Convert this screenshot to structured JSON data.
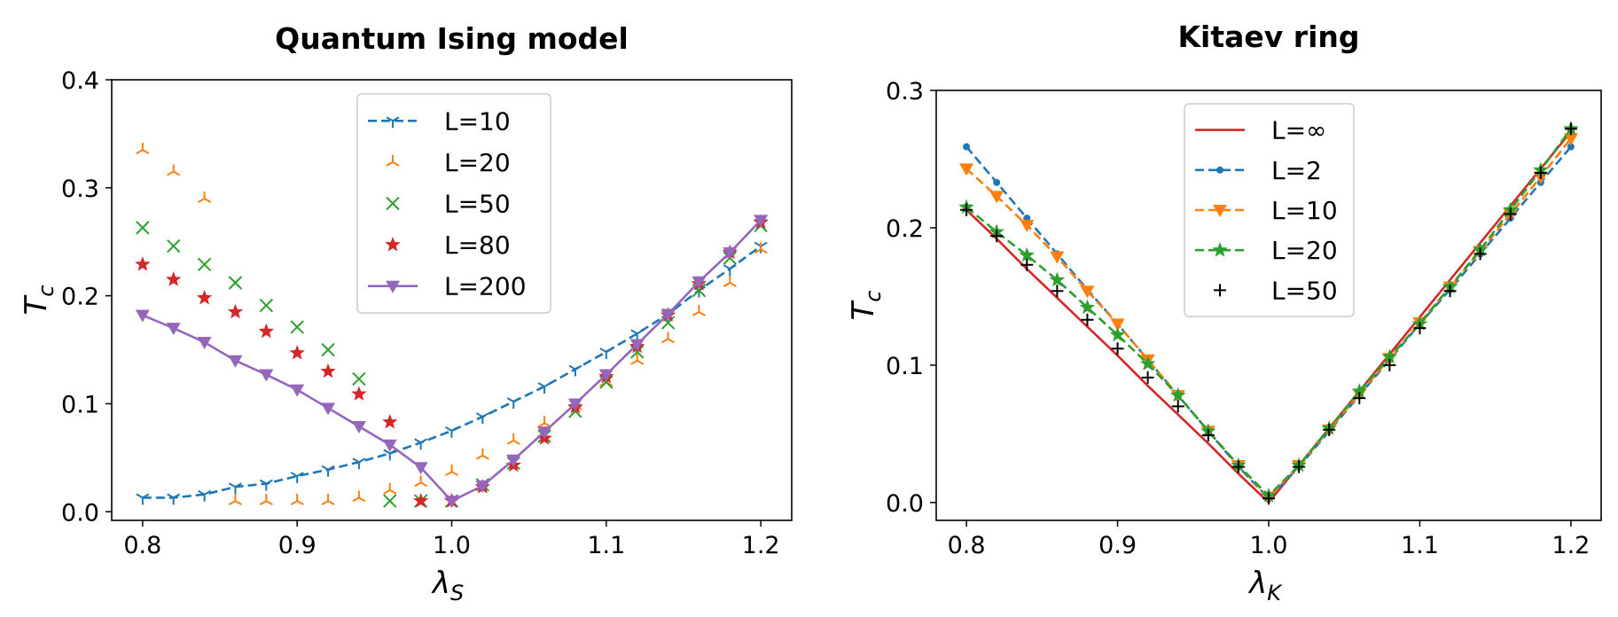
{
  "chart_data": [
    {
      "type": "line",
      "title": "Quantum Ising model",
      "xlabel_main": "λ",
      "xlabel_sub": "S",
      "ylabel_main": "T",
      "ylabel_sub": "c",
      "xlim": [
        0.78,
        1.22
      ],
      "ylim": [
        -0.008,
        0.4
      ],
      "xticks": [
        0.8,
        0.9,
        1.0,
        1.1,
        1.2
      ],
      "xtick_labels": [
        "0.8",
        "0.9",
        "1.0",
        "1.1",
        "1.2"
      ],
      "yticks": [
        0.0,
        0.1,
        0.2,
        0.3,
        0.4
      ],
      "ytick_labels": [
        "0.0",
        "0.1",
        "0.2",
        "0.3",
        "0.4"
      ],
      "legend_position": "top-center",
      "x": [
        0.8,
        0.82,
        0.84,
        0.86,
        0.88,
        0.9,
        0.92,
        0.94,
        0.96,
        0.98,
        1.0,
        1.02,
        1.04,
        1.06,
        1.08,
        1.1,
        1.12,
        1.14,
        1.16,
        1.18,
        1.2
      ],
      "series": [
        {
          "name": "L=10",
          "label": "L=10",
          "color": "#1f77b4",
          "line": "dashed",
          "marker": "tri_down",
          "values": [
            0.013,
            0.013,
            0.016,
            0.023,
            0.026,
            0.033,
            0.039,
            0.046,
            0.054,
            0.064,
            0.075,
            0.088,
            0.102,
            0.116,
            0.132,
            0.148,
            0.165,
            0.183,
            0.205,
            0.225,
            0.246
          ]
        },
        {
          "name": "L=20",
          "label": "L=20",
          "color": "#ff7f0e",
          "line": "none",
          "marker": "tri_up",
          "values": [
            0.335,
            0.315,
            0.29,
            0.01,
            0.01,
            0.01,
            0.01,
            0.013,
            0.02,
            0.027,
            0.037,
            0.052,
            0.066,
            0.082,
            0.098,
            0.12,
            0.14,
            0.16,
            0.185,
            0.212,
            0.243
          ]
        },
        {
          "name": "L=50",
          "label": "L=50",
          "color": "#2ca02c",
          "line": "none",
          "marker": "x",
          "values": [
            0.263,
            0.246,
            0.229,
            0.212,
            0.191,
            0.171,
            0.15,
            0.123,
            0.01,
            0.01,
            0.01,
            0.025,
            0.045,
            0.07,
            0.093,
            0.12,
            0.148,
            0.175,
            0.205,
            0.235,
            0.265
          ]
        },
        {
          "name": "L=80",
          "label": "L=80",
          "color": "#d62728",
          "line": "none",
          "marker": "star",
          "values": [
            0.229,
            0.215,
            0.198,
            0.185,
            0.167,
            0.147,
            0.13,
            0.109,
            0.083,
            0.01,
            0.01,
            0.023,
            0.043,
            0.068,
            0.097,
            0.125,
            0.153,
            0.182,
            0.211,
            0.24,
            0.268
          ]
        },
        {
          "name": "L=200",
          "label": "L=200",
          "color": "#9467bd",
          "line": "solid",
          "marker": "triangle_down",
          "values": [
            0.182,
            0.17,
            0.157,
            0.14,
            0.127,
            0.113,
            0.096,
            0.079,
            0.062,
            0.041,
            0.01,
            0.024,
            0.048,
            0.074,
            0.1,
            0.127,
            0.155,
            0.183,
            0.213,
            0.24,
            0.27
          ]
        }
      ]
    },
    {
      "type": "line",
      "title": "Kitaev ring",
      "xlabel_main": "λ",
      "xlabel_sub": "K",
      "ylabel_main": "T",
      "ylabel_sub": "c",
      "xlim": [
        0.78,
        1.22
      ],
      "ylim": [
        -0.013,
        0.3
      ],
      "xticks": [
        0.8,
        0.9,
        1.0,
        1.1,
        1.2
      ],
      "xtick_labels": [
        "0.8",
        "0.9",
        "1.0",
        "1.1",
        "1.2"
      ],
      "yticks": [
        0.0,
        0.1,
        0.2,
        0.3
      ],
      "ytick_labels": [
        "0.0",
        "0.1",
        "0.2",
        "0.3"
      ],
      "legend_position": "top-center",
      "x": [
        0.8,
        0.82,
        0.84,
        0.86,
        0.88,
        0.9,
        0.92,
        0.94,
        0.96,
        0.98,
        1.0,
        1.02,
        1.04,
        1.06,
        1.08,
        1.1,
        1.12,
        1.14,
        1.16,
        1.18,
        1.2
      ],
      "series": [
        {
          "name": "L=∞",
          "label": "L=∞",
          "color": "#d62728",
          "line": "solid",
          "marker": "none",
          "values": [
            0.213,
            0.192,
            0.17,
            0.149,
            0.128,
            0.107,
            0.085,
            0.064,
            0.043,
            0.021,
            0.0,
            0.027,
            0.054,
            0.081,
            0.108,
            0.135,
            0.162,
            0.189,
            0.216,
            0.243,
            0.27
          ]
        },
        {
          "name": "L=2",
          "label": "L=2",
          "color": "#1f77b4",
          "line": "dashed",
          "marker": "point",
          "values": [
            0.259,
            0.233,
            0.207,
            0.181,
            0.155,
            0.13,
            0.104,
            0.078,
            0.052,
            0.026,
            0.003,
            0.026,
            0.052,
            0.078,
            0.104,
            0.13,
            0.155,
            0.181,
            0.207,
            0.233,
            0.259
          ]
        },
        {
          "name": "L=10",
          "label": "L=10",
          "color": "#ff7f0e",
          "line": "dashed",
          "marker": "triangle_down",
          "values": [
            0.243,
            0.223,
            0.202,
            0.179,
            0.154,
            0.13,
            0.104,
            0.078,
            0.052,
            0.027,
            0.004,
            0.027,
            0.053,
            0.079,
            0.105,
            0.131,
            0.157,
            0.183,
            0.21,
            0.237,
            0.265
          ]
        },
        {
          "name": "L=20",
          "label": "L=20",
          "color": "#2ca02c",
          "line": "dashed",
          "marker": "star",
          "values": [
            0.215,
            0.197,
            0.18,
            0.162,
            0.142,
            0.122,
            0.101,
            0.078,
            0.052,
            0.027,
            0.005,
            0.027,
            0.054,
            0.081,
            0.106,
            0.13,
            0.157,
            0.184,
            0.213,
            0.242,
            0.272
          ]
        },
        {
          "name": "L=50",
          "label": "L=50",
          "color": "#000000",
          "line": "none",
          "marker": "plus",
          "values": [
            0.213,
            0.194,
            0.173,
            0.154,
            0.133,
            0.112,
            0.091,
            0.07,
            0.049,
            0.026,
            0.003,
            0.026,
            0.053,
            0.076,
            0.1,
            0.127,
            0.154,
            0.181,
            0.21,
            0.24,
            0.272
          ]
        }
      ]
    }
  ]
}
